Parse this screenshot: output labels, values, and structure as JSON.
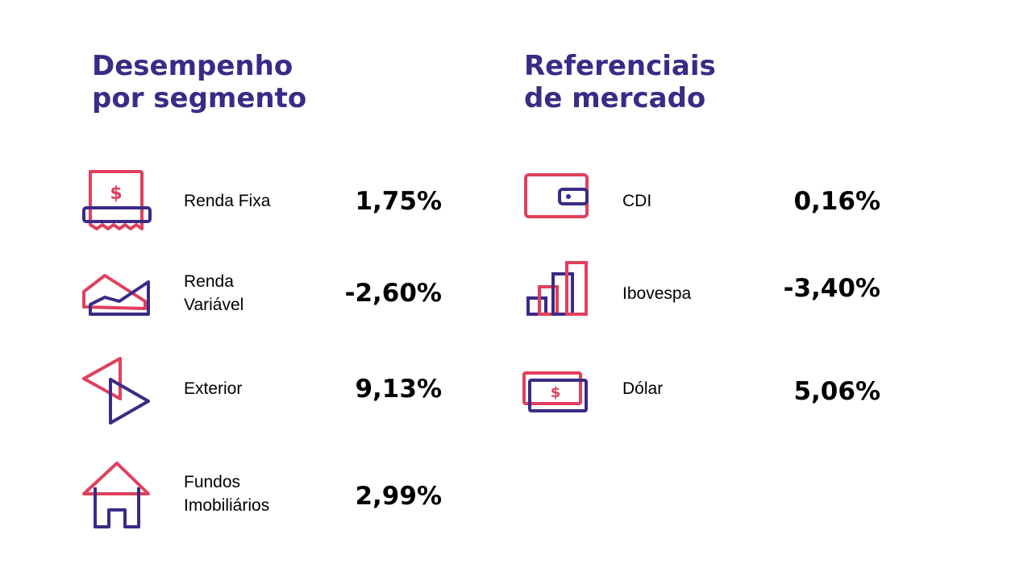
{
  "colors": {
    "accent_pink": "#e0405c",
    "accent_purple": "#3b2a86",
    "text": "#000000"
  },
  "left": {
    "title_line1": "Desempenho",
    "title_line2": "por segmento",
    "items": [
      {
        "label": "Renda Fixa",
        "value": "1,75%",
        "icon": "receipt-dollar-icon"
      },
      {
        "label_line1": "Renda",
        "label_line2": "Variável",
        "value": "-2,60%",
        "icon": "mountain-chart-icon"
      },
      {
        "label": "Exterior",
        "value": "9,13%",
        "icon": "play-arrows-icon"
      },
      {
        "label_line1": "Fundos",
        "label_line2": "Imobiliários",
        "value": "2,99%",
        "icon": "house-icon"
      }
    ]
  },
  "right": {
    "title_line1": "Referenciais",
    "title_line2": "de mercado",
    "items": [
      {
        "label": "CDI",
        "value": "0,16%",
        "icon": "wallet-icon"
      },
      {
        "label": "Ibovespa",
        "value": "-3,40%",
        "icon": "bar-growth-icon"
      },
      {
        "label": "Dólar",
        "value": "5,06%",
        "icon": "banknote-icon"
      }
    ]
  }
}
